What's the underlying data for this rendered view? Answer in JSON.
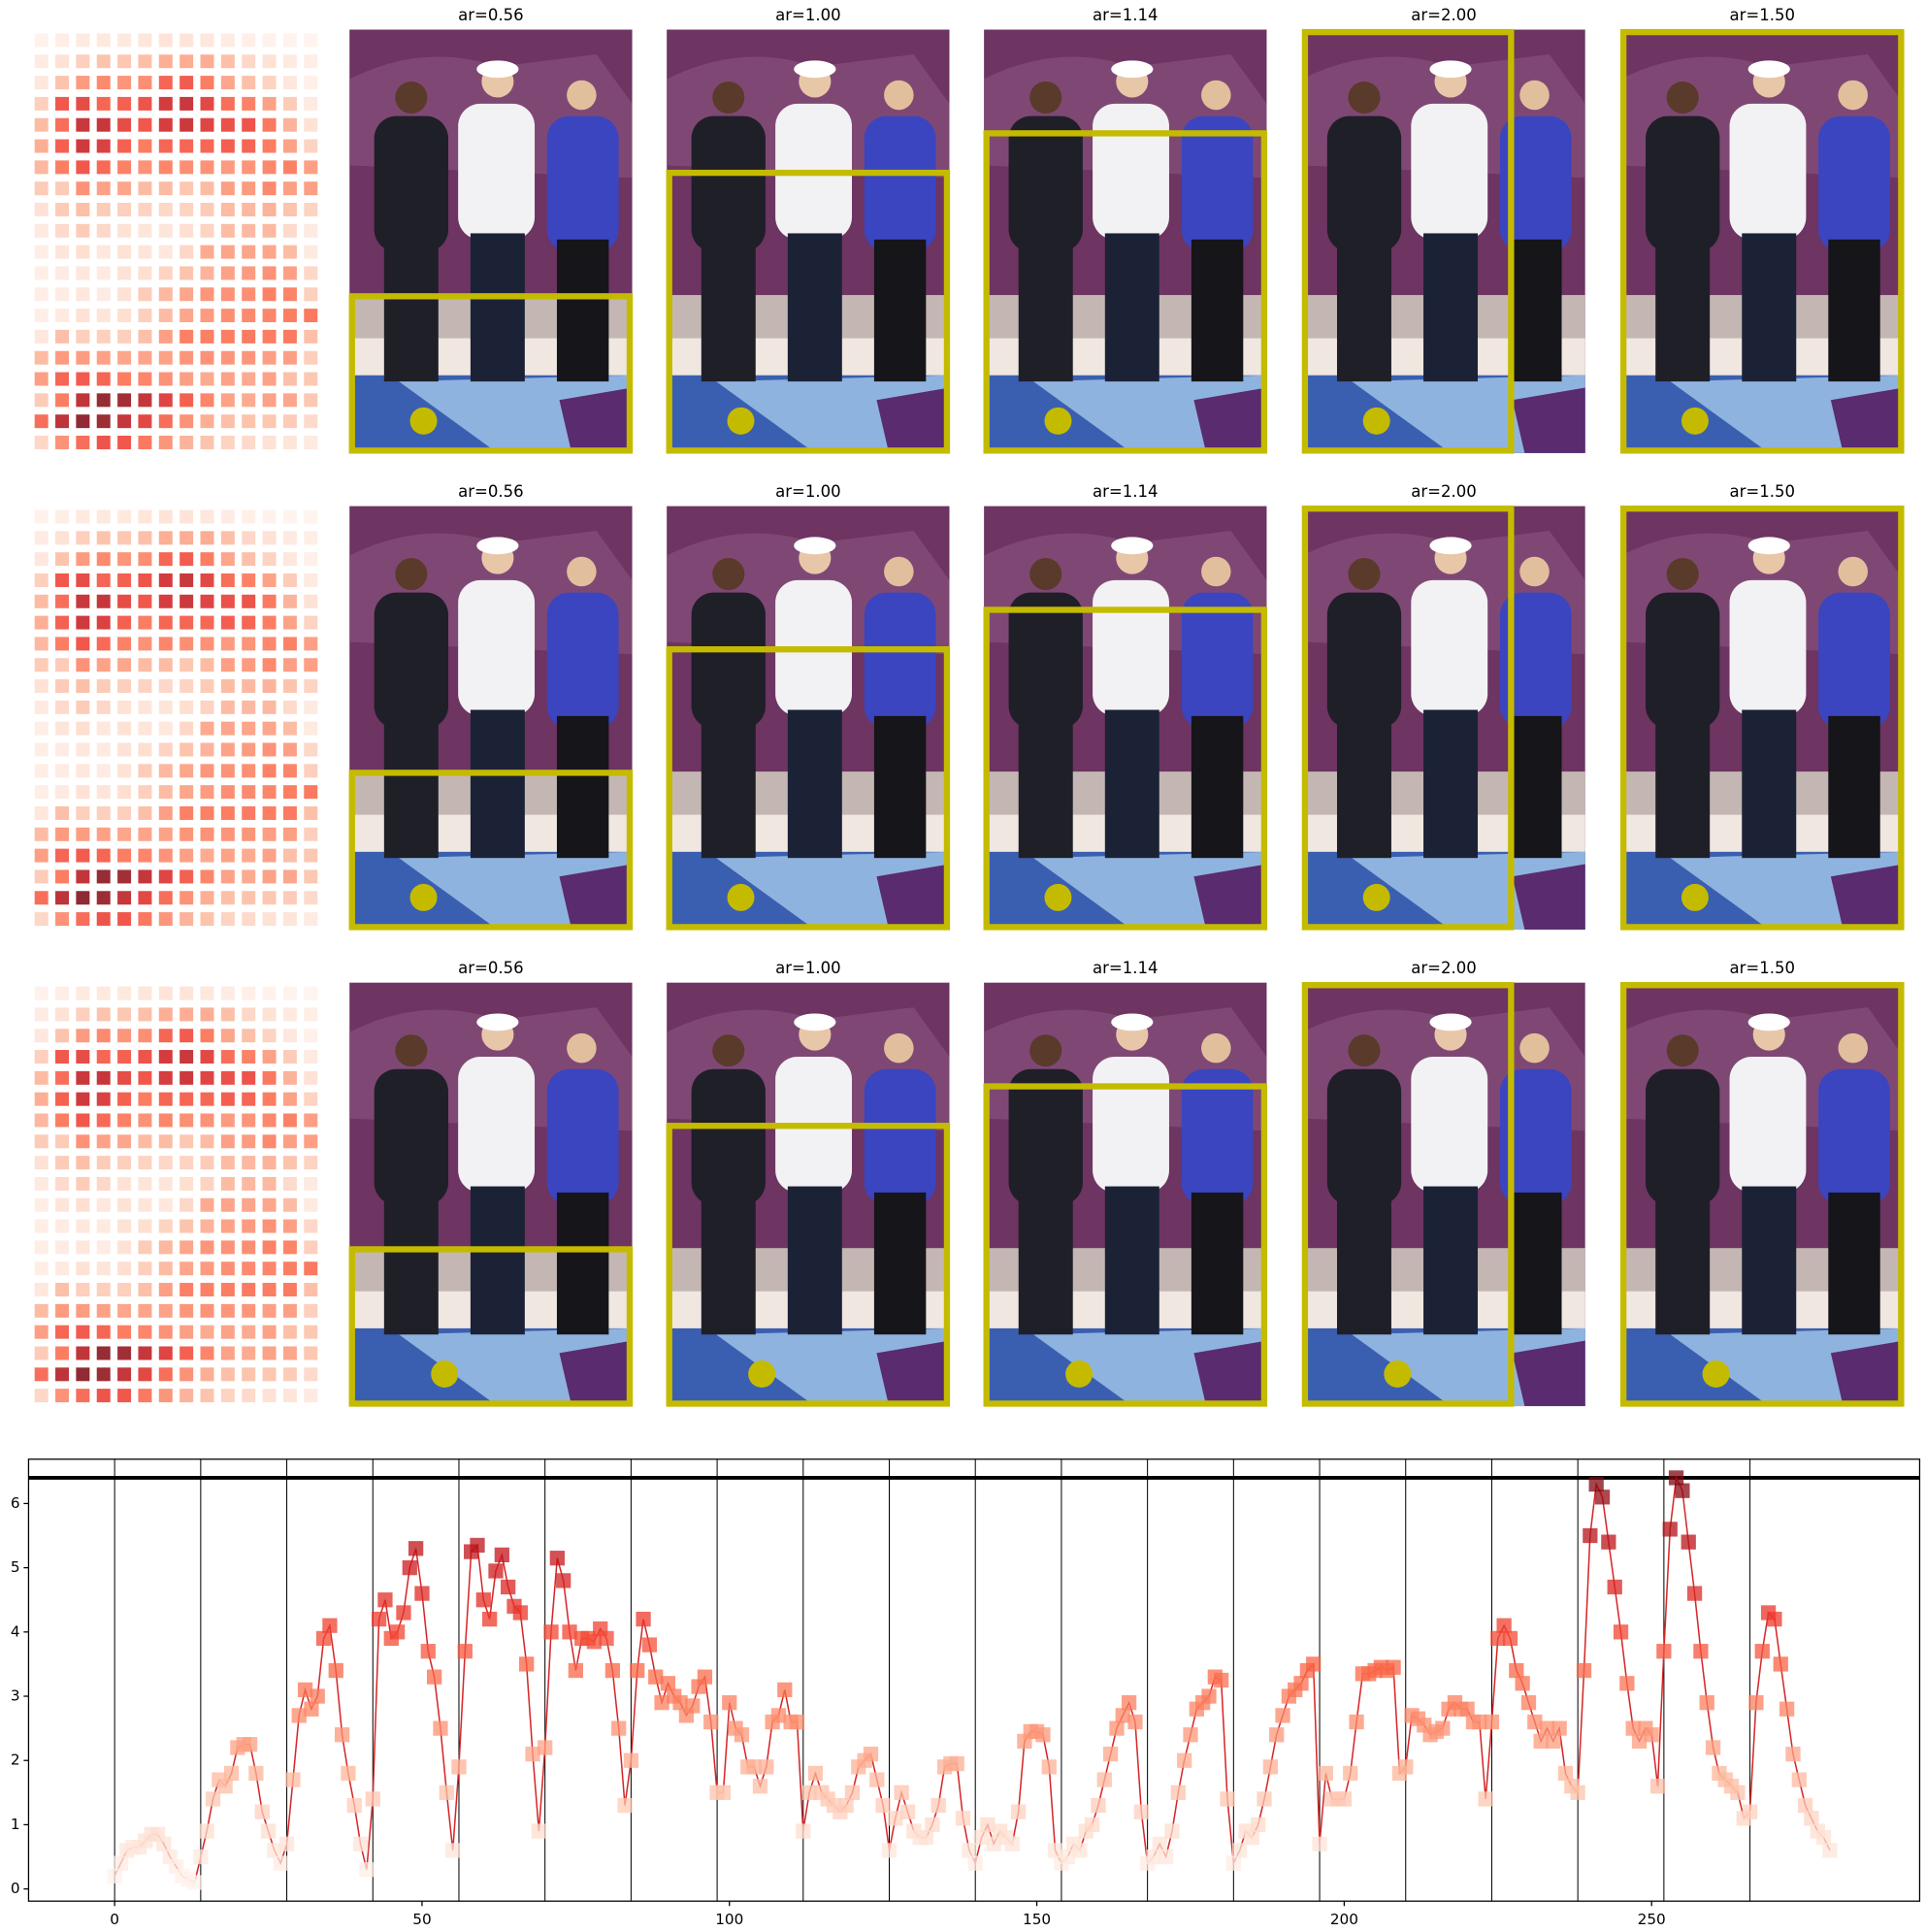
{
  "panels": [
    {
      "titles": [
        "ar=0.56",
        "ar=1.00",
        "ar=1.14",
        "ar=2.00",
        "ar=1.50"
      ]
    },
    {
      "titles": [
        "ar=0.56",
        "ar=1.00",
        "ar=1.14",
        "ar=2.00",
        "ar=1.50"
      ]
    },
    {
      "titles": [
        "ar=0.56",
        "ar=1.00",
        "ar=1.14",
        "ar=2.00",
        "ar=1.50"
      ]
    }
  ],
  "chart_data": {
    "type": "line",
    "x": [
      0,
      1,
      2,
      3,
      4,
      5,
      6,
      7,
      8,
      9,
      10,
      11,
      12,
      13,
      14,
      15,
      16,
      17,
      18,
      19,
      20,
      21,
      22,
      23,
      24,
      25,
      26,
      27,
      28,
      29,
      30,
      31,
      32,
      33,
      34,
      35,
      36,
      37,
      38,
      39,
      40,
      41,
      42,
      43,
      44,
      45,
      46,
      47,
      48,
      49,
      50,
      51,
      52,
      53,
      54,
      55,
      56,
      57,
      58,
      59,
      60,
      61,
      62,
      63,
      64,
      65,
      66,
      67,
      68,
      69,
      70,
      71,
      72,
      73,
      74,
      75,
      76,
      77,
      78,
      79,
      80,
      81,
      82,
      83,
      84,
      85,
      86,
      87,
      88,
      89,
      90,
      91,
      92,
      93,
      94,
      95,
      96,
      97,
      98,
      99,
      100,
      101,
      102,
      103,
      104,
      105,
      106,
      107,
      108,
      109,
      110,
      111,
      112,
      113,
      114,
      115,
      116,
      117,
      118,
      119,
      120,
      121,
      122,
      123,
      124,
      125,
      126,
      127,
      128,
      129,
      130,
      131,
      132,
      133,
      134,
      135,
      136,
      137,
      138,
      139,
      140,
      141,
      142,
      143,
      144,
      145,
      146,
      147,
      148,
      149,
      150,
      151,
      152,
      153,
      154,
      155,
      156,
      157,
      158,
      159,
      160,
      161,
      162,
      163,
      164,
      165,
      166,
      167,
      168,
      169,
      170,
      171,
      172,
      173,
      174,
      175,
      176,
      177,
      178,
      179,
      180,
      181,
      182,
      183,
      184,
      185,
      186,
      187,
      188,
      189,
      190,
      191,
      192,
      193,
      194,
      195,
      196,
      197,
      198,
      199,
      200,
      201,
      202,
      203,
      204,
      205,
      206,
      207,
      208,
      209,
      210,
      211,
      212,
      213,
      214,
      215,
      216,
      217,
      218,
      219,
      220,
      221,
      222,
      223,
      224,
      225,
      226,
      227,
      228,
      229,
      230,
      231,
      232,
      233,
      234,
      235,
      236,
      237,
      238,
      239,
      240,
      241,
      242,
      243,
      244,
      245,
      246,
      247,
      248,
      249,
      250,
      251,
      252,
      253,
      254,
      255,
      256,
      257,
      258,
      259,
      260,
      261,
      262,
      263,
      264,
      265,
      266,
      267,
      268,
      269,
      270,
      271,
      272,
      273,
      274,
      275,
      276,
      277,
      278,
      279
    ],
    "series": [
      {
        "color": "#d62728",
        "values": [
          0.2,
          0.4,
          0.6,
          0.65,
          0.65,
          0.75,
          0.85,
          0.85,
          0.7,
          0.5,
          0.35,
          0.2,
          0.15,
          0.1,
          0.5,
          0.9,
          1.4,
          1.7,
          1.6,
          1.8,
          2.2,
          2.25,
          2.25,
          1.8,
          1.2,
          0.9,
          0.6,
          0.4,
          0.7,
          1.7,
          2.7,
          3.1,
          2.8,
          3.0,
          3.9,
          4.1,
          3.4,
          2.4,
          1.8,
          1.3,
          0.7,
          0.3,
          1.4,
          4.2,
          4.5,
          3.9,
          4.0,
          4.3,
          5.0,
          5.3,
          4.6,
          3.7,
          3.3,
          2.5,
          1.5,
          0.6,
          1.9,
          3.7,
          5.25,
          5.35,
          4.5,
          4.2,
          4.95,
          5.2,
          4.7,
          4.4,
          4.3,
          3.5,
          2.1,
          0.9,
          2.2,
          4.0,
          5.15,
          4.8,
          4.0,
          3.4,
          3.9,
          3.9,
          3.85,
          4.05,
          3.9,
          3.4,
          2.5,
          1.3,
          2.0,
          3.4,
          4.2,
          3.8,
          3.3,
          2.9,
          3.2,
          3.0,
          2.9,
          2.7,
          2.85,
          3.15,
          3.3,
          2.6,
          1.5,
          1.5,
          2.9,
          2.5,
          2.4,
          1.9,
          1.9,
          1.6,
          1.9,
          2.6,
          2.7,
          3.1,
          2.6,
          2.6,
          0.9,
          1.5,
          1.8,
          1.5,
          1.4,
          1.3,
          1.2,
          1.3,
          1.5,
          1.9,
          2.0,
          2.1,
          1.7,
          1.3,
          0.6,
          1.1,
          1.5,
          1.2,
          0.9,
          0.8,
          0.8,
          1.0,
          1.3,
          1.9,
          1.95,
          1.95,
          1.1,
          0.6,
          0.4,
          0.8,
          1.0,
          0.7,
          0.9,
          0.8,
          0.7,
          1.2,
          2.3,
          2.45,
          2.45,
          2.4,
          1.9,
          0.6,
          0.4,
          0.5,
          0.7,
          0.6,
          0.9,
          1.0,
          1.3,
          1.7,
          2.1,
          2.5,
          2.7,
          2.9,
          2.6,
          1.2,
          0.4,
          0.5,
          0.7,
          0.5,
          0.9,
          1.5,
          2.0,
          2.4,
          2.8,
          2.9,
          3.0,
          3.3,
          3.25,
          1.4,
          0.4,
          0.6,
          0.9,
          0.8,
          1.0,
          1.4,
          1.9,
          2.4,
          2.7,
          3.0,
          3.1,
          3.2,
          3.4,
          3.5,
          0.7,
          1.8,
          1.4,
          1.4,
          1.4,
          1.8,
          2.6,
          3.35,
          3.35,
          3.4,
          3.45,
          3.4,
          3.45,
          1.8,
          1.9,
          2.7,
          2.65,
          2.55,
          2.4,
          2.45,
          2.5,
          2.8,
          2.9,
          2.8,
          2.8,
          2.6,
          2.6,
          1.4,
          2.6,
          3.9,
          4.1,
          3.9,
          3.4,
          3.2,
          2.9,
          2.6,
          2.3,
          2.5,
          2.3,
          2.5,
          1.8,
          1.6,
          1.5,
          3.4,
          5.5,
          6.3,
          6.1,
          5.4,
          4.7,
          4.0,
          3.2,
          2.5,
          2.3,
          2.5,
          2.4,
          1.6,
          3.7,
          5.6,
          6.4,
          6.2,
          5.4,
          4.6,
          3.7,
          2.9,
          2.2,
          1.8,
          1.7,
          1.6,
          1.5,
          1.1,
          1.2,
          2.9,
          3.7,
          4.3,
          4.2,
          3.5,
          2.8,
          2.1,
          1.7,
          1.3,
          1.1,
          0.9,
          0.8,
          0.6
        ]
      }
    ],
    "hline": 6.4,
    "vlines": [
      0,
      14,
      28,
      42,
      56,
      70,
      84,
      98,
      112,
      126,
      140,
      154,
      168,
      182,
      196,
      210,
      224,
      238,
      252,
      266
    ],
    "xlim": [
      -14,
      293.6
    ],
    "ylim": [
      -0.19,
      6.69
    ],
    "xticks": [
      0,
      50,
      100,
      150,
      200,
      250
    ],
    "yticks": [
      0,
      1,
      2,
      3,
      4,
      5,
      6
    ]
  }
}
